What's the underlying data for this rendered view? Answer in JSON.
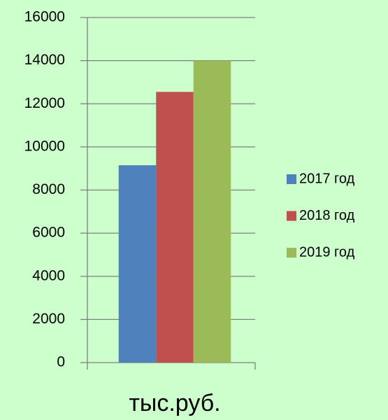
{
  "chart_data": {
    "type": "bar",
    "categories": [
      "тыс.руб."
    ],
    "series": [
      {
        "name": "2017 год",
        "color": "#4f81bd",
        "values": [
          9150
        ]
      },
      {
        "name": "2018 год",
        "color": "#c0504d",
        "values": [
          12550
        ]
      },
      {
        "name": "2019 год",
        "color": "#9bbb59",
        "values": [
          14000
        ]
      }
    ],
    "ylim": [
      0,
      16000
    ],
    "yticks": [
      0,
      2000,
      4000,
      6000,
      8000,
      10000,
      12000,
      14000,
      16000
    ],
    "grid": true,
    "legend": "right"
  }
}
